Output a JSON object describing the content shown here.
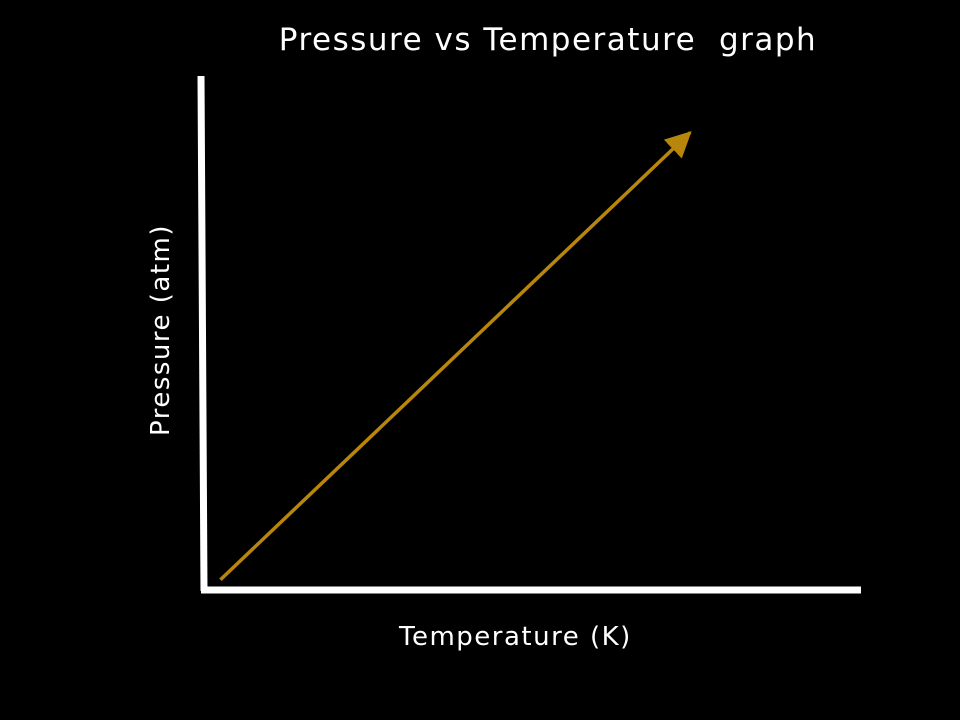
{
  "chart_data": {
    "type": "line",
    "title": "Pressure vs Temperature  graph",
    "xlabel": "Temperature (K)",
    "ylabel": "Pressure (atm)",
    "xlim": [
      0,
      10
    ],
    "ylim": [
      0,
      10
    ],
    "grid": false,
    "series": [
      {
        "name": "pressure",
        "x": [
          0.25,
          7.4
        ],
        "y": [
          0.2,
          8.9
        ],
        "color": "#b8860b",
        "arrow_end": true
      }
    ]
  },
  "colors": {
    "background": "#000000",
    "axes": "#ffffff",
    "text": "#ffffff",
    "series": "#b8860b"
  }
}
